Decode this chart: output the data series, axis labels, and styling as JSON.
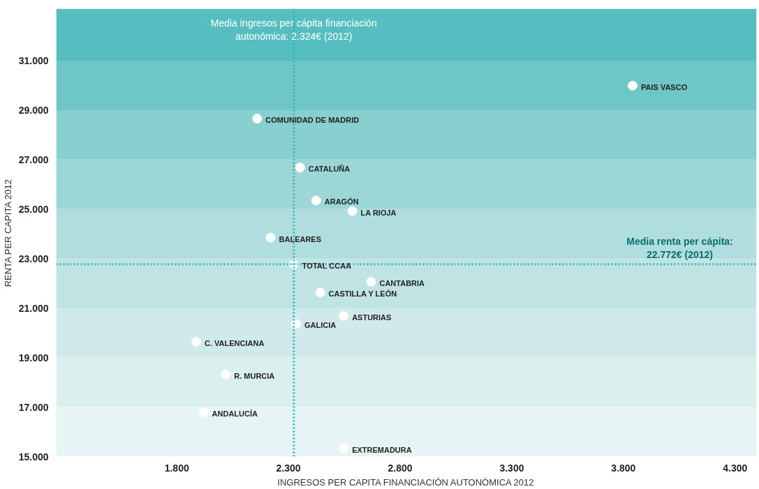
{
  "chart_data": {
    "type": "scatter",
    "xlabel": "INGRESOS PER CAPITA FINANCIACIÓN AUTONÓMICA 2012",
    "ylabel": "RENTA PER CAPITA 2012",
    "x": [
      3841,
      2160,
      2352,
      2424,
      2586,
      2220,
      2324,
      2670,
      2442,
      2547,
      2334,
      1887,
      2019,
      1920,
      2547
    ],
    "series": [
      {
        "color": "#ffffff",
        "values": [
          29990,
          28660,
          26680,
          25350,
          24920,
          23850,
          22772,
          22060,
          21630,
          20680,
          20360,
          19640,
          18320,
          16790,
          15320
        ]
      }
    ],
    "marker": "circle",
    "annotations": [
      {
        "text": "PAIS VASCO",
        "x": 3841,
        "y": 29990
      },
      {
        "text": "COMUNIDAD DE MADRID",
        "x": 2160,
        "y": 28660
      },
      {
        "text": "CATALUÑA",
        "x": 2352,
        "y": 26680
      },
      {
        "text": "ARAGÓN",
        "x": 2424,
        "y": 25350
      },
      {
        "text": "LA RIOJA",
        "x": 2586,
        "y": 24920
      },
      {
        "text": "BALEARES",
        "x": 2220,
        "y": 23850
      },
      {
        "text": "TOTAL CCAA",
        "x": 2324,
        "y": 22772
      },
      {
        "text": "CANTABRIA",
        "x": 2670,
        "y": 22060
      },
      {
        "text": "CASTILLA Y LEÓN",
        "x": 2442,
        "y": 21630
      },
      {
        "text": "ASTURIAS",
        "x": 2547,
        "y": 20680
      },
      {
        "text": "GALICIA",
        "x": 2334,
        "y": 20360
      },
      {
        "text": "C. VALENCIANA",
        "x": 1887,
        "y": 19640
      },
      {
        "text": "R. MURCIA",
        "x": 2019,
        "y": 18320
      },
      {
        "text": "ANDALUCÍA",
        "x": 1920,
        "y": 16790
      },
      {
        "text": "EXTREMADURA",
        "x": 2547,
        "y": 15320
      }
    ],
    "xlim": [
      1260,
      4396
    ],
    "ylim": [
      15000,
      33100
    ],
    "xticks": [
      {
        "value": 1800,
        "label": "1.800"
      },
      {
        "value": 2300,
        "label": "2.300"
      },
      {
        "value": 2800,
        "label": "2.800"
      },
      {
        "value": 3300,
        "label": "3.300"
      },
      {
        "value": 3800,
        "label": "3.800"
      },
      {
        "value": 4300,
        "label": "4.300"
      }
    ],
    "yticks": [
      {
        "value": 15000,
        "label": "15.000"
      },
      {
        "value": 17000,
        "label": "17.000"
      },
      {
        "value": 19000,
        "label": "19.000"
      },
      {
        "value": 21000,
        "label": "21.000"
      },
      {
        "value": 23000,
        "label": "23.000"
      },
      {
        "value": 25000,
        "label": "25.000"
      },
      {
        "value": 27000,
        "label": "27.000"
      },
      {
        "value": 29000,
        "label": "29.000"
      },
      {
        "value": 31000,
        "label": "31.000"
      }
    ],
    "ref_lines": [
      {
        "axis": "x",
        "value": 2324,
        "label": "Media ingresos per cápita financiación\nautonómica: 2.324€ (2012)",
        "color": "#2bb5b5",
        "line_style": "dotted"
      },
      {
        "axis": "y",
        "value": 22772,
        "label": "Media renta per cápita:\n22.772€ (2012)",
        "color": "#2bb5b5",
        "line_style": "dotted"
      }
    ],
    "bands": [
      {
        "axis": "y",
        "from": 15000,
        "to": 17000,
        "color": "#e7f4f5"
      },
      {
        "axis": "y",
        "from": 17000,
        "to": 19000,
        "color": "#dcefef"
      },
      {
        "axis": "y",
        "from": 19000,
        "to": 21000,
        "color": "#d0e9ea"
      },
      {
        "axis": "y",
        "from": 21000,
        "to": 23000,
        "color": "#c0e3e4"
      },
      {
        "axis": "y",
        "from": 23000,
        "to": 25000,
        "color": "#b0dddd"
      },
      {
        "axis": "y",
        "from": 25000,
        "to": 27000,
        "color": "#9dd6d6"
      },
      {
        "axis": "y",
        "from": 27000,
        "to": 29000,
        "color": "#88cfcf"
      },
      {
        "axis": "y",
        "from": 29000,
        "to": 31000,
        "color": "#6fc6c7"
      },
      {
        "axis": "y",
        "from": 31000,
        "to": 33100,
        "color": "#56bec0"
      }
    ],
    "grid": false
  }
}
